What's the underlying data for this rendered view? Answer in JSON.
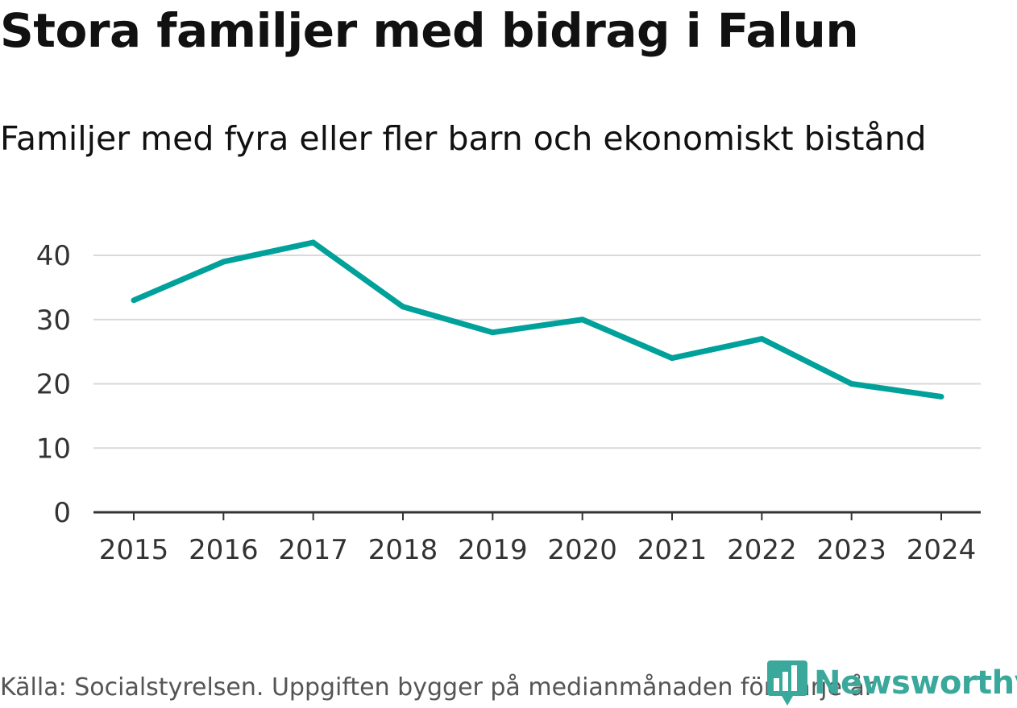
{
  "title": "Stora familjer med bidrag i Falun",
  "subtitle": "Familjer med fyra eller fler barn och ekonomiskt bistånd",
  "source": "Källa: Socialstyrelsen. Uppgiften bygger på medianmånaden för varje år",
  "brand": "Newsworthy",
  "colors": {
    "line": "#00a19a",
    "grid": "#d9d9d9",
    "axis": "#333333",
    "brand": "#3aa89b"
  },
  "chart_data": {
    "type": "line",
    "title": "Stora familjer med bidrag i Falun",
    "subtitle": "Familjer med fyra eller fler barn och ekonomiskt bistånd",
    "xlabel": "",
    "ylabel": "",
    "x": [
      "2015",
      "2016",
      "2017",
      "2018",
      "2019",
      "2020",
      "2021",
      "2022",
      "2023",
      "2024"
    ],
    "series": [
      {
        "name": "Familjer med fyra eller fler barn och ekonomiskt bistånd",
        "values": [
          33,
          39,
          42,
          32,
          28,
          30,
          24,
          27,
          20,
          18
        ]
      }
    ],
    "ylim": [
      0,
      40
    ],
    "yticks": [
      "0",
      "10",
      "20",
      "30",
      "40"
    ],
    "grid": true
  }
}
